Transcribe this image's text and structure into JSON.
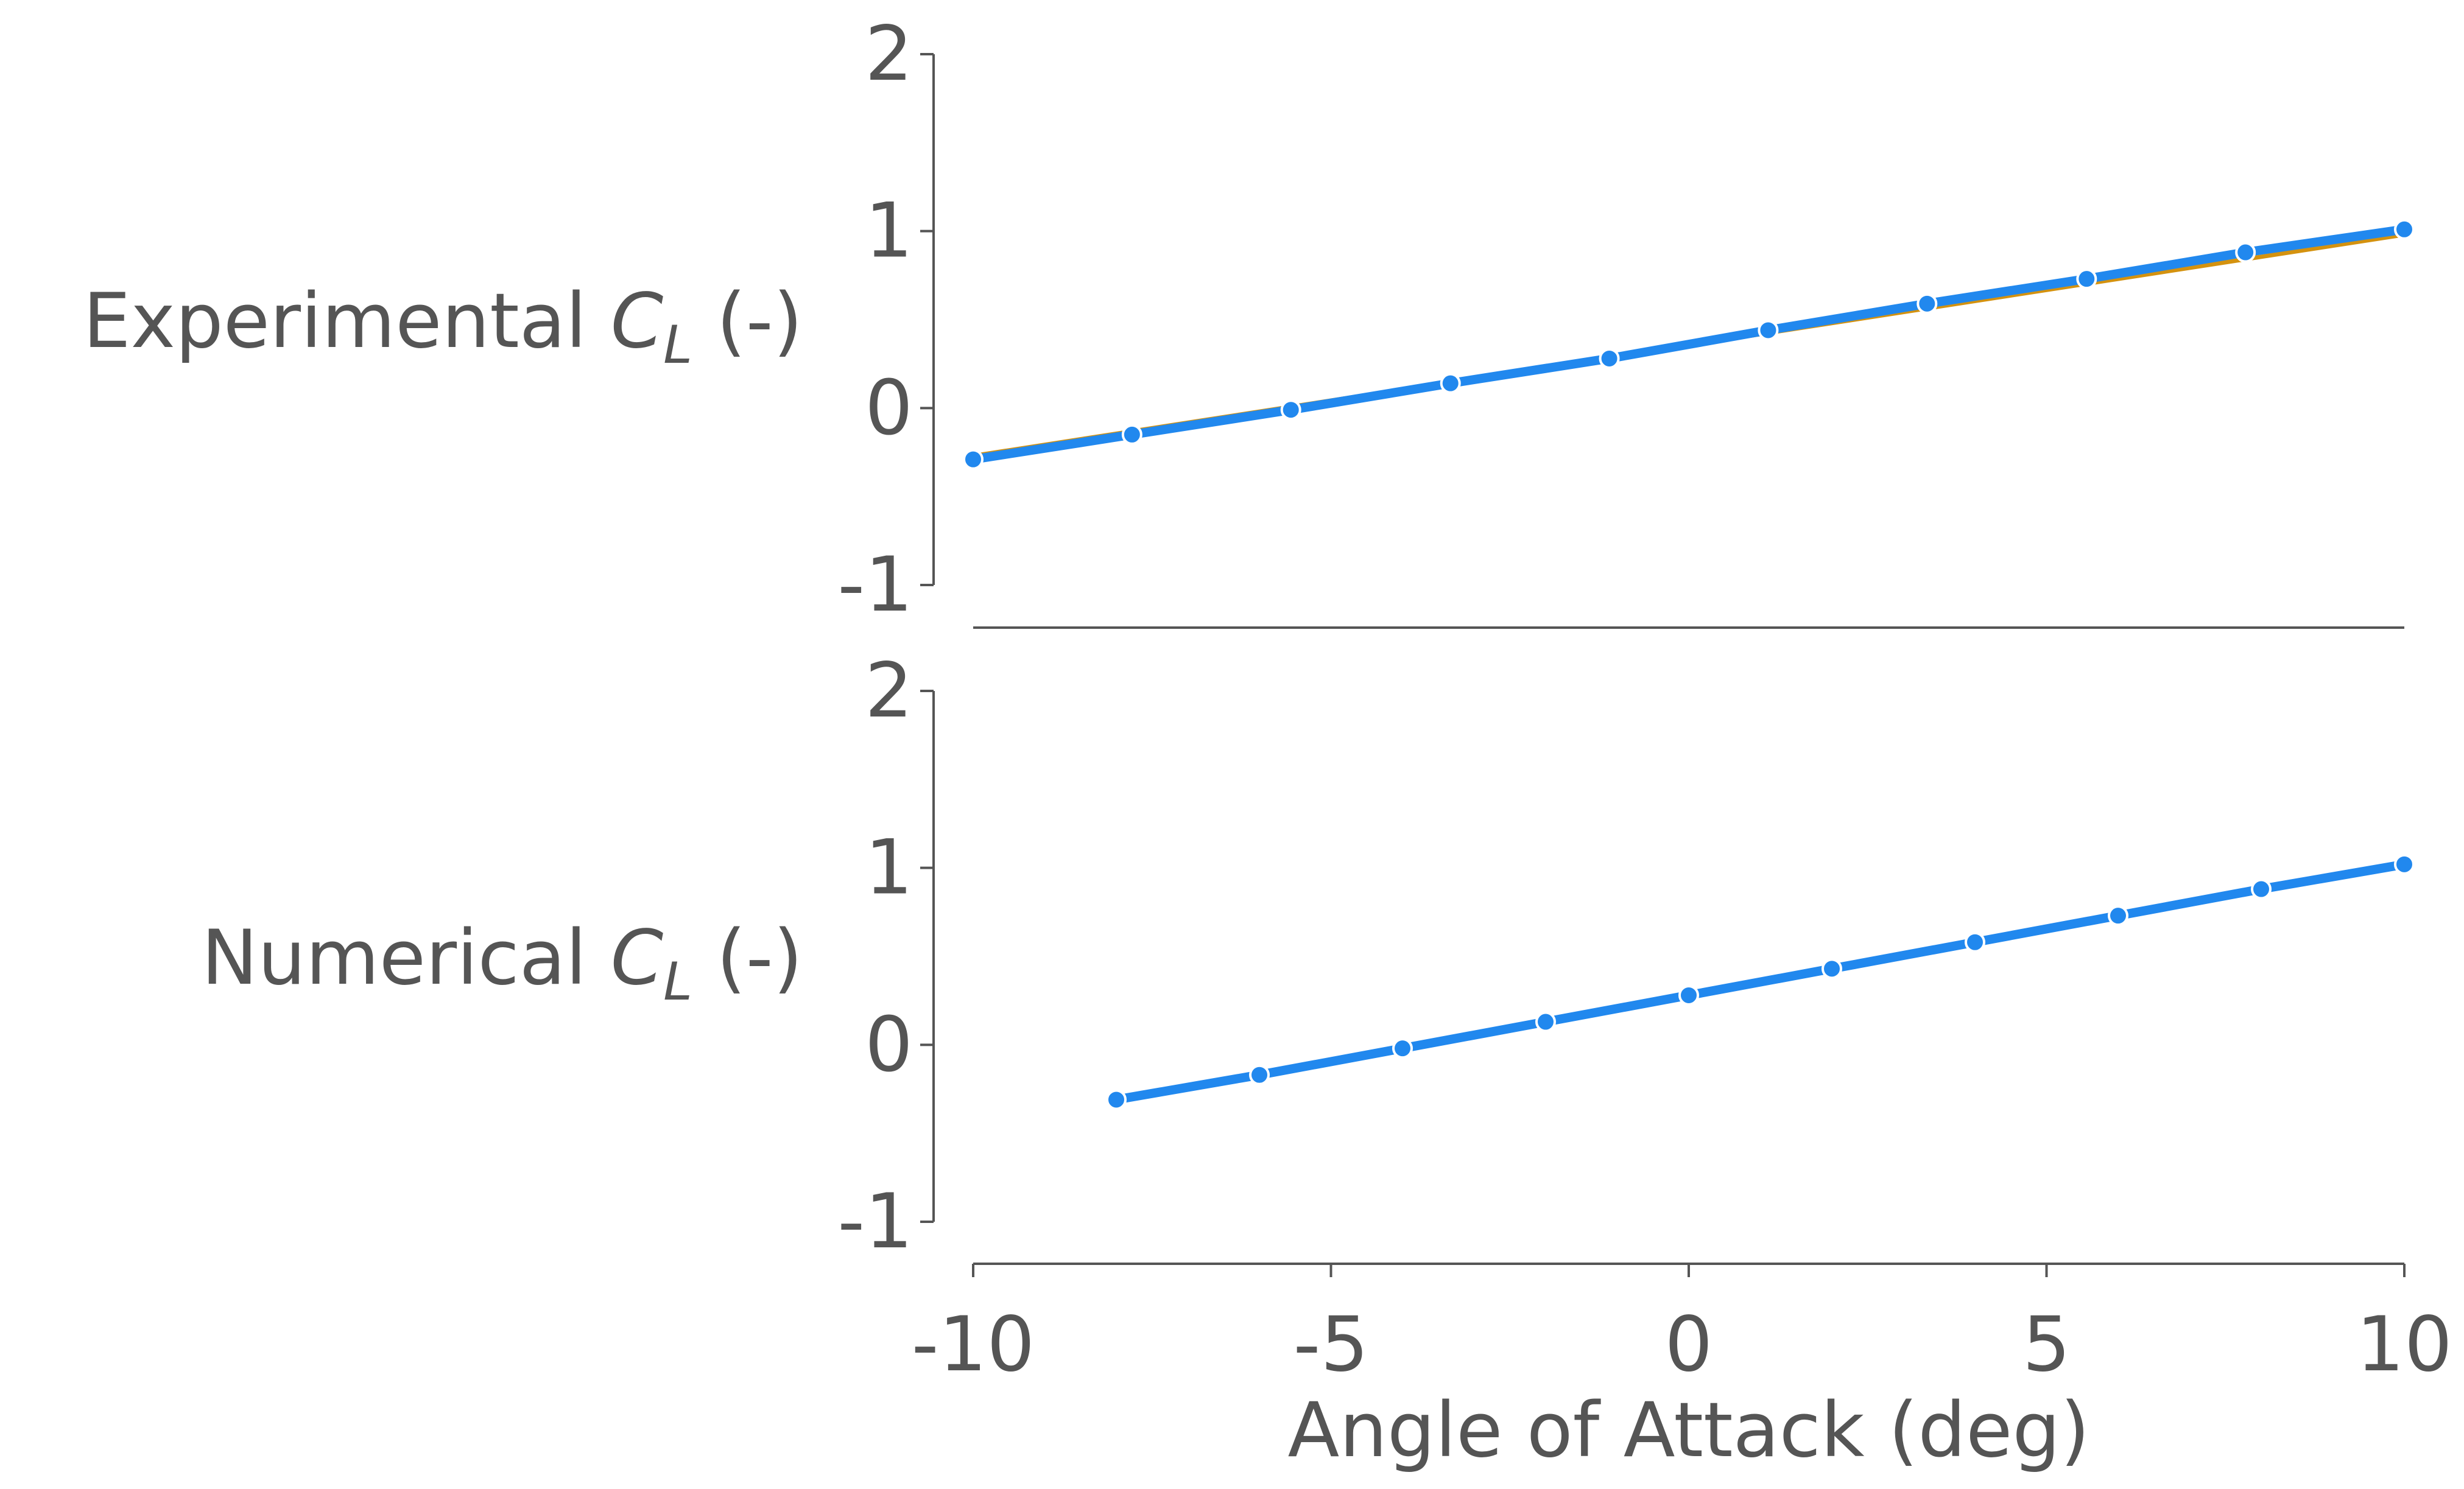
{
  "chart_data": [
    {
      "type": "line",
      "ylabel": "Experimental",
      "ylabel_symbol": "C",
      "ylabel_subscript": "L",
      "ylabel_unit": "(-)",
      "ylim": [
        -1,
        2
      ],
      "xlim": [
        -10,
        10
      ],
      "yticks": [
        -1,
        0,
        1,
        2
      ],
      "ytick_labels": [
        "-1",
        "0",
        "1",
        "2"
      ],
      "grid": false,
      "series": [
        {
          "color": "#d4920f",
          "marker": false,
          "x": [
            -10,
            10
          ],
          "y": [
            -0.27,
            0.98
          ]
        },
        {
          "color": "#2188ee",
          "marker": true,
          "x": [
            -10,
            -7.78,
            -5.56,
            -3.33,
            -1.11,
            1.11,
            3.33,
            5.56,
            7.78,
            10
          ],
          "y": [
            -0.29,
            -0.15,
            -0.01,
            0.14,
            0.28,
            0.44,
            0.59,
            0.73,
            0.88,
            1.01
          ]
        }
      ]
    },
    {
      "type": "line",
      "ylabel": "Numerical",
      "ylabel_symbol": "C",
      "ylabel_subscript": "L",
      "ylabel_unit": "(-)",
      "xlabel": "Angle of Attack (deg)",
      "ylim": [
        -1,
        2
      ],
      "xlim": [
        -10,
        10
      ],
      "yticks": [
        -1,
        0,
        1,
        2
      ],
      "ytick_labels": [
        "-1",
        "0",
        "1",
        "2"
      ],
      "xticks": [
        -10,
        -5,
        0,
        5,
        10
      ],
      "xtick_labels": [
        "-10",
        "-5",
        "0",
        "5",
        "10"
      ],
      "grid": false,
      "series": [
        {
          "color": "#2188ee",
          "marker": true,
          "x": [
            -8,
            -6,
            -4,
            -2,
            0,
            2,
            4,
            6,
            8,
            10
          ],
          "y": [
            -0.31,
            -0.17,
            -0.02,
            0.13,
            0.28,
            0.43,
            0.58,
            0.73,
            0.88,
            1.02
          ]
        }
      ]
    }
  ]
}
